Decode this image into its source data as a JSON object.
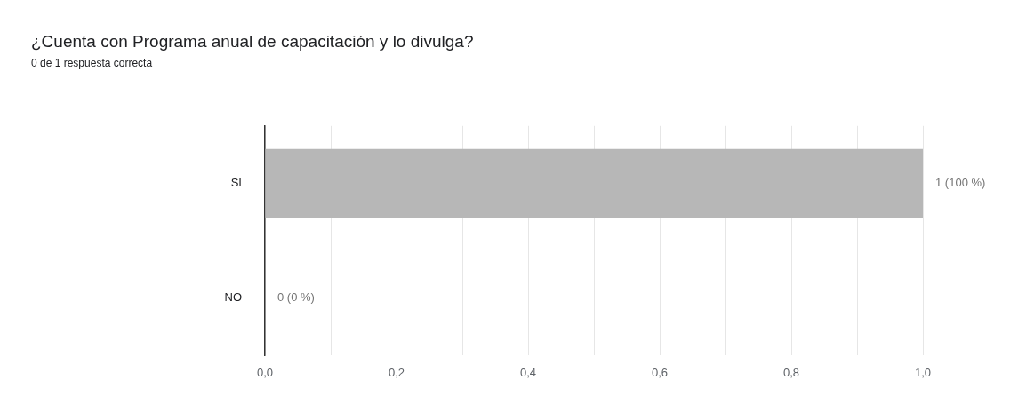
{
  "chart_data": {
    "type": "bar",
    "orientation": "horizontal",
    "title": "¿Cuenta con Programa anual de capacitación y lo divulga?",
    "subtitle": "0 de 1 respuesta correcta",
    "categories": [
      "SI",
      "NO"
    ],
    "values": [
      1,
      0
    ],
    "color": "#b7b7b7",
    "value_labels": [
      "1 (100 %)",
      "0 (0 %)"
    ],
    "xlim": [
      0,
      1
    ],
    "xticks": [
      {
        "value": 0,
        "label": "0,0"
      },
      {
        "value": 0.1,
        "label": null
      },
      {
        "value": 0.2,
        "label": "0,2"
      },
      {
        "value": 0.3,
        "label": null
      },
      {
        "value": 0.4,
        "label": "0,4"
      },
      {
        "value": 0.5,
        "label": null
      },
      {
        "value": 0.6,
        "label": "0,6"
      },
      {
        "value": 0.7,
        "label": null
      },
      {
        "value": 0.8,
        "label": "0,8"
      },
      {
        "value": 0.9,
        "label": null
      },
      {
        "value": 1,
        "label": "1,0"
      }
    ],
    "grid": "x"
  }
}
